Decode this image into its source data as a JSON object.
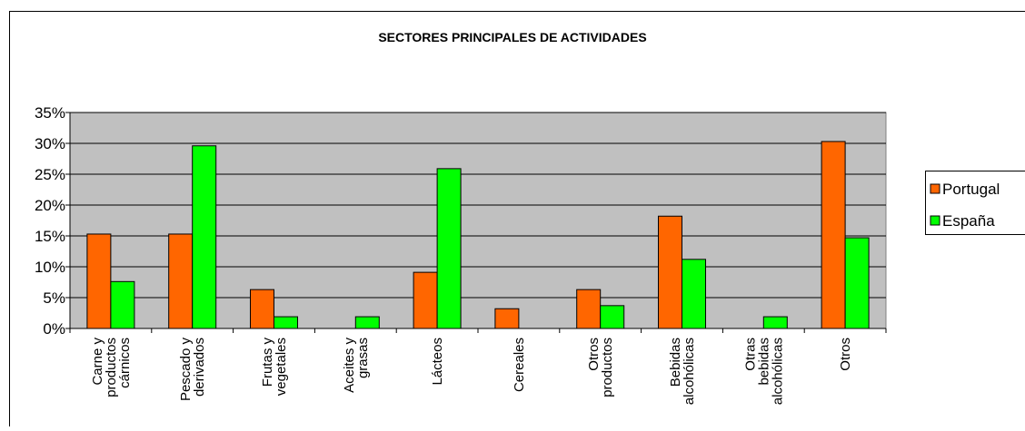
{
  "chart_data": {
    "type": "bar",
    "title": "SECTORES PRINCIPALES DE ACTIVIDADES",
    "categories": [
      [
        "Carne y",
        "productos",
        "cárnicos"
      ],
      [
        "Pescado y",
        "derivados"
      ],
      [
        "Frutas y",
        "vegetales"
      ],
      [
        "Aceites y",
        "grasas"
      ],
      [
        "Lácteos"
      ],
      [
        "Cereales"
      ],
      [
        "Otros",
        "productos"
      ],
      [
        "Bebidas",
        "alcohólicas"
      ],
      [
        "Otras",
        "bebidas",
        "alcohólicas"
      ],
      [
        "Otros"
      ]
    ],
    "series": [
      {
        "name": "Portugal",
        "color": "#ff6600",
        "values": [
          15.3,
          15.3,
          6.3,
          0,
          9.1,
          3.2,
          6.3,
          18.2,
          0,
          30.3
        ]
      },
      {
        "name": "España",
        "color": "#00ff00",
        "values": [
          7.6,
          29.6,
          1.9,
          1.9,
          25.9,
          0,
          3.7,
          11.2,
          1.9,
          14.7
        ]
      }
    ],
    "ylim": [
      0,
      35
    ],
    "yticks": [
      {
        "value": 0,
        "label": "0%"
      },
      {
        "value": 5,
        "label": "5%"
      },
      {
        "value": 10,
        "label": "10%"
      },
      {
        "value": 15,
        "label": "15%"
      },
      {
        "value": 20,
        "label": "20%"
      },
      {
        "value": 25,
        "label": "25%"
      },
      {
        "value": 30,
        "label": "30%"
      },
      {
        "value": 35,
        "label": "35%"
      }
    ],
    "grid": true,
    "legend": "right",
    "plot_background": "#c0c0c0"
  }
}
